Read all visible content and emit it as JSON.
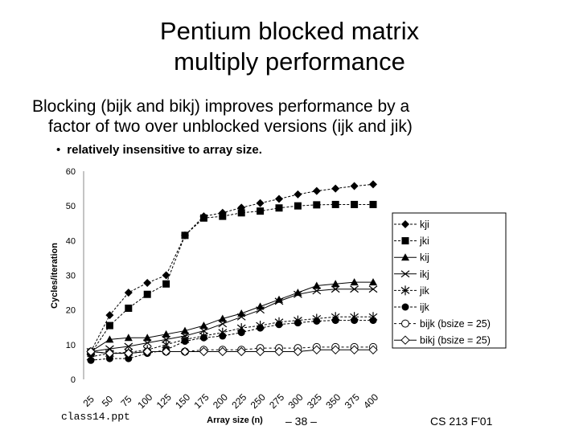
{
  "slide": {
    "title_line1": "Pentium blocked matrix",
    "title_line2": "multiply performance",
    "bullet_line1": "Blocking (bijk and bikj) improves performance by a",
    "bullet_line2": "factor of two over unblocked versions (ijk and jik)",
    "sub_bullet_marker": "•",
    "sub_bullet": "relatively insensitive to array size.",
    "footer_file": "class14.ppt",
    "footer_page": "– 38 –",
    "footer_course": "CS 213 F'01"
  },
  "chart_data": {
    "type": "line",
    "title": "",
    "xlabel": "Array size (n)",
    "ylabel": "Cycles/iteration",
    "ylim": [
      0,
      60
    ],
    "yticks": [
      "0",
      "10",
      "20",
      "30",
      "40",
      "50",
      "60"
    ],
    "ytick_values": [
      0,
      10,
      20,
      30,
      40,
      50,
      60
    ],
    "grid": false,
    "legend_position": "right",
    "categories": [
      "25",
      "50",
      "75",
      "100",
      "125",
      "150",
      "175",
      "200",
      "225",
      "250",
      "275",
      "300",
      "325",
      "350",
      "375",
      "400"
    ],
    "series": [
      {
        "name": "kji",
        "marker": "diamond-filled",
        "values": [
          8,
          18.5,
          25,
          27.8,
          30,
          41.5,
          47,
          48,
          49.5,
          50.8,
          52,
          53.3,
          54.3,
          55,
          55.7,
          56.2
        ]
      },
      {
        "name": "jki",
        "marker": "square-filled",
        "values": [
          7.5,
          15.5,
          20.5,
          24.5,
          27.5,
          41.5,
          46.5,
          47,
          48,
          48.5,
          49.4,
          50,
          50.3,
          50.4,
          50.4,
          50.4
        ]
      },
      {
        "name": "kij",
        "marker": "triangle-filled",
        "values": [
          8,
          11.5,
          12,
          12,
          13,
          14,
          15.5,
          17.5,
          19,
          21,
          23,
          25,
          27,
          27.5,
          28,
          28
        ]
      },
      {
        "name": "ikj",
        "marker": "x",
        "values": [
          8,
          8.8,
          9.5,
          10.5,
          11.5,
          12.5,
          14,
          16,
          18,
          20,
          22.5,
          24.5,
          25.5,
          26,
          26,
          26
        ]
      },
      {
        "name": "jik",
        "marker": "star",
        "values": [
          6.5,
          7.5,
          7.8,
          8.5,
          10,
          11.5,
          12.5,
          13.5,
          14.8,
          15.5,
          16.5,
          17,
          17.5,
          18,
          18,
          18
        ]
      },
      {
        "name": "ijk",
        "marker": "circle-filled",
        "values": [
          5.5,
          6,
          6,
          7.5,
          8.5,
          11,
          12,
          12.5,
          13.5,
          14.8,
          15.8,
          16.3,
          16.8,
          17,
          17,
          17
        ]
      },
      {
        "name": "bijk (bsize = 25)",
        "marker": "circle-open",
        "values": [
          8,
          7.5,
          7.5,
          8,
          8,
          8,
          8.5,
          8.5,
          8.5,
          9,
          9,
          9,
          9.3,
          9.3,
          9.3,
          9.3
        ]
      },
      {
        "name": "bikj (bsize = 25)",
        "marker": "diamond-open",
        "values": [
          8,
          7.5,
          7.5,
          8,
          8,
          8,
          8,
          8,
          8,
          8,
          8,
          8,
          8.5,
          8.5,
          8.5,
          8.5
        ]
      }
    ]
  }
}
